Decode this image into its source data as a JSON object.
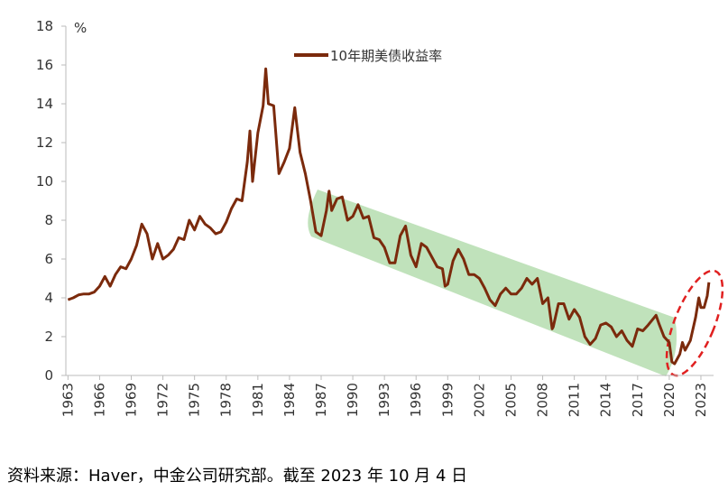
{
  "chart_data": {
    "type": "line",
    "y_unit": "%",
    "source": "资料来源：Haver，中金公司研究部。截至 2023 年 10 月 4 日",
    "x": [
      1963,
      1963.5,
      1964,
      1964.5,
      1965,
      1965.5,
      1966,
      1966.5,
      1967,
      1967.5,
      1968,
      1968.5,
      1969,
      1969.5,
      1970,
      1970.5,
      1971,
      1971.5,
      1972,
      1972.5,
      1973,
      1973.5,
      1974,
      1974.5,
      1975,
      1975.5,
      1976,
      1976.5,
      1977,
      1977.5,
      1978,
      1978.5,
      1979,
      1979.5,
      1980,
      1980.25,
      1980.5,
      1981,
      1981.5,
      1981.75,
      1982,
      1982.5,
      1983,
      1983.5,
      1984,
      1984.5,
      1985,
      1985.5,
      1986,
      1986.5,
      1987,
      1987.5,
      1987.75,
      1988,
      1988.5,
      1989,
      1989.5,
      1990,
      1990.5,
      1991,
      1991.5,
      1992,
      1992.5,
      1993,
      1993.5,
      1994,
      1994.5,
      1995,
      1995.5,
      1996,
      1996.5,
      1997,
      1997.5,
      1998,
      1998.5,
      1998.75,
      1999,
      1999.5,
      2000,
      2000.5,
      2001,
      2001.5,
      2002,
      2002.5,
      2003,
      2003.5,
      2004,
      2004.5,
      2005,
      2005.5,
      2006,
      2006.5,
      2007,
      2007.5,
      2008,
      2008.5,
      2008.9,
      2009,
      2009.5,
      2010,
      2010.5,
      2011,
      2011.5,
      2012,
      2012.5,
      2013,
      2013.5,
      2014,
      2014.5,
      2015,
      2015.5,
      2016,
      2016.5,
      2017,
      2017.5,
      2018,
      2018.75,
      2019,
      2019.5,
      2020,
      2020.25,
      2020.5,
      2021,
      2021.25,
      2021.5,
      2022,
      2022.5,
      2022.8,
      2023,
      2023.3,
      2023.6,
      2023.76
    ],
    "series": [
      {
        "name": "10年期美债收益率",
        "color": "#7b2a0c",
        "values": [
          3.9,
          4.0,
          4.15,
          4.2,
          4.2,
          4.3,
          4.6,
          5.1,
          4.6,
          5.2,
          5.6,
          5.5,
          6.0,
          6.7,
          7.8,
          7.3,
          6.0,
          6.8,
          6.0,
          6.2,
          6.5,
          7.1,
          7.0,
          8.0,
          7.5,
          8.2,
          7.8,
          7.6,
          7.3,
          7.4,
          7.9,
          8.6,
          9.1,
          9.0,
          11.0,
          12.6,
          10.0,
          12.5,
          13.9,
          15.8,
          14.0,
          13.9,
          10.4,
          11.0,
          11.7,
          13.8,
          11.5,
          10.4,
          9.0,
          7.4,
          7.2,
          8.5,
          9.5,
          8.5,
          9.1,
          9.2,
          8.0,
          8.2,
          8.8,
          8.1,
          8.2,
          7.1,
          7.0,
          6.6,
          5.8,
          5.8,
          7.2,
          7.7,
          6.2,
          5.6,
          6.8,
          6.6,
          6.1,
          5.6,
          5.5,
          4.6,
          4.7,
          5.9,
          6.5,
          6.0,
          5.2,
          5.2,
          5.0,
          4.5,
          3.9,
          3.6,
          4.2,
          4.5,
          4.2,
          4.2,
          4.5,
          5.0,
          4.7,
          5.0,
          3.7,
          4.0,
          2.4,
          2.5,
          3.7,
          3.7,
          2.9,
          3.4,
          3.0,
          2.0,
          1.6,
          1.9,
          2.6,
          2.7,
          2.5,
          2.0,
          2.3,
          1.8,
          1.5,
          2.4,
          2.3,
          2.6,
          3.1,
          2.7,
          2.0,
          1.7,
          0.7,
          0.6,
          1.1,
          1.7,
          1.3,
          1.8,
          3.0,
          4.0,
          3.5,
          3.5,
          4.1,
          4.8
        ]
      }
    ],
    "xlim": [
      1962.8,
      2024.2
    ],
    "xticks": [
      1963,
      1966,
      1969,
      1972,
      1975,
      1978,
      1981,
      1984,
      1987,
      1990,
      1993,
      1996,
      1999,
      2002,
      2005,
      2008,
      2011,
      2014,
      2017,
      2020,
      2023
    ],
    "ylim": [
      0,
      18
    ],
    "yticks": [
      0,
      2,
      4,
      6,
      8,
      10,
      12,
      14,
      16,
      18
    ]
  }
}
